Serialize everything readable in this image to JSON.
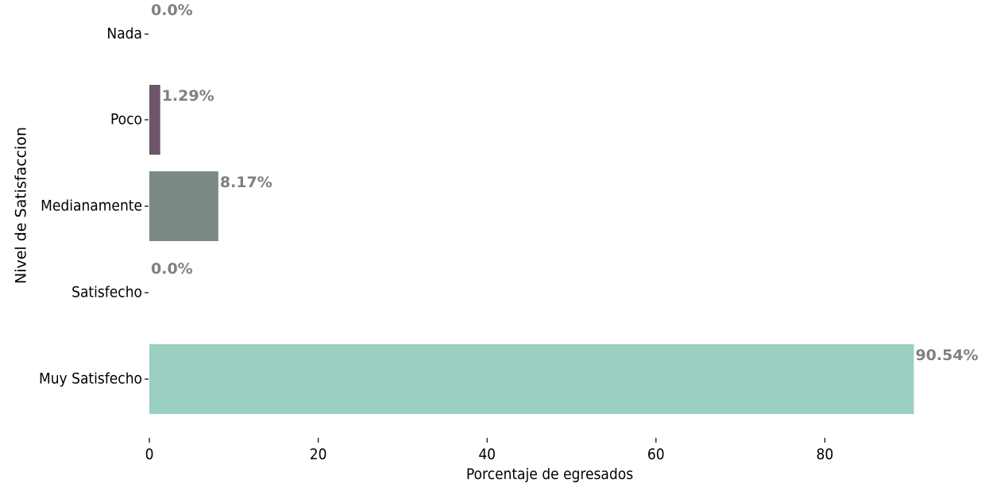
{
  "chart_data": {
    "type": "bar",
    "orientation": "horizontal",
    "title": "",
    "xlabel": "Porcentaje de egresados",
    "ylabel": "Nivel de Satisfaccion",
    "xlim": [
      0,
      100
    ],
    "x_ticks": [
      0,
      20,
      40,
      60,
      80
    ],
    "grid": false,
    "categories": [
      "Nada",
      "Poco",
      "Medianamente",
      "Satisfecho",
      "Muy Satisfecho"
    ],
    "values": [
      0.0,
      1.29,
      8.17,
      0.0,
      90.54
    ],
    "data_labels": [
      "0.0%",
      "1.29%",
      "8.17%",
      "0.0%",
      "90.54%"
    ],
    "colors": [
      "#2e1a47",
      "#6e5568",
      "#7d8987",
      "#b0c4c0",
      "#9bcfc2"
    ],
    "label_color": "#808080"
  }
}
